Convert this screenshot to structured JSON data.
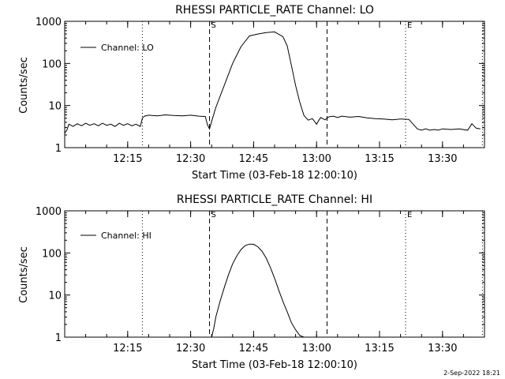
{
  "chart_data": [
    {
      "type": "line",
      "title": "RHESSI PARTICLE_RATE Channel: LO",
      "xlabel": "Start Time (03-Feb-18 12:00:10)",
      "ylabel": "Counts/sec",
      "yscale": "log",
      "ylim": [
        1,
        1000
      ],
      "xlim_minutes": [
        0,
        100
      ],
      "x_ticks": [
        {
          "label": "12:15",
          "minutes": 15
        },
        {
          "label": "12:30",
          "minutes": 30
        },
        {
          "label": "12:45",
          "minutes": 45
        },
        {
          "label": "13:00",
          "minutes": 60
        },
        {
          "label": "13:15",
          "minutes": 75
        },
        {
          "label": "13:30",
          "minutes": 90
        }
      ],
      "y_ticks": [
        {
          "label": "1",
          "value": 1
        },
        {
          "label": "10",
          "value": 10
        },
        {
          "label": "100",
          "value": 100
        },
        {
          "label": "1000",
          "value": 1000
        }
      ],
      "legend": {
        "label": "Channel: LO",
        "position": "top-left"
      },
      "markers": [
        {
          "label": "S",
          "minutes": 34.5,
          "style": "dashed"
        },
        {
          "label": "",
          "minutes": 62.5,
          "style": "dashed"
        },
        {
          "label": "",
          "minutes": 18.5,
          "style": "dotted"
        },
        {
          "label": "E",
          "minutes": 81.2,
          "style": "dotted"
        },
        {
          "label": "",
          "minutes": 99.5,
          "style": "dotted"
        }
      ],
      "series": [
        {
          "name": "Channel: LO",
          "x": [
            0,
            0.5,
            1,
            2,
            3,
            4,
            5,
            6,
            7,
            8,
            9,
            10,
            11,
            12,
            13,
            14,
            15,
            16,
            17,
            18,
            18.5,
            19,
            20,
            22,
            24,
            26,
            28,
            30,
            32,
            33.5,
            34,
            34.5,
            35,
            36,
            38,
            40,
            42,
            44,
            46,
            48,
            50,
            52,
            53,
            54,
            55,
            56,
            57,
            58,
            59,
            60,
            60.5,
            61,
            62,
            63,
            64,
            65,
            66,
            68,
            70,
            72,
            74,
            76,
            78,
            80,
            82,
            84,
            85,
            86,
            87,
            88,
            89,
            90,
            92,
            94,
            96,
            97,
            98,
            99
          ],
          "y": [
            2.2,
            2.6,
            3.6,
            3.2,
            3.7,
            3.3,
            3.8,
            3.4,
            3.7,
            3.3,
            3.8,
            3.4,
            3.6,
            3.2,
            3.8,
            3.4,
            3.7,
            3.3,
            3.6,
            3.2,
            5.0,
            5.6,
            5.9,
            5.7,
            6.0,
            5.8,
            5.7,
            5.9,
            5.6,
            5.5,
            3.5,
            2.8,
            4.2,
            9.0,
            30,
            100,
            250,
            450,
            500,
            540,
            560,
            430,
            260,
            90,
            30,
            12,
            5.8,
            4.5,
            4.9,
            3.6,
            4.4,
            5.2,
            4.6,
            5.4,
            5.6,
            5.2,
            5.6,
            5.3,
            5.5,
            5.1,
            4.9,
            4.8,
            4.6,
            4.8,
            4.7,
            2.8,
            2.6,
            2.8,
            2.6,
            2.7,
            2.6,
            2.8,
            2.7,
            2.8,
            2.6,
            3.7,
            2.9,
            2.8
          ]
        }
      ]
    },
    {
      "type": "line",
      "title": "RHESSI PARTICLE_RATE Channel: HI",
      "xlabel": "Start Time (03-Feb-18 12:00:10)",
      "ylabel": "Counts/sec",
      "yscale": "log",
      "ylim": [
        1,
        1000
      ],
      "xlim_minutes": [
        0,
        100
      ],
      "x_ticks": [
        {
          "label": "12:15",
          "minutes": 15
        },
        {
          "label": "12:30",
          "minutes": 30
        },
        {
          "label": "12:45",
          "minutes": 45
        },
        {
          "label": "13:00",
          "minutes": 60
        },
        {
          "label": "13:15",
          "minutes": 75
        },
        {
          "label": "13:30",
          "minutes": 90
        }
      ],
      "y_ticks": [
        {
          "label": "1",
          "value": 1
        },
        {
          "label": "10",
          "value": 10
        },
        {
          "label": "100",
          "value": 100
        },
        {
          "label": "1000",
          "value": 1000
        }
      ],
      "legend": {
        "label": "Channel: HI",
        "position": "top-left"
      },
      "markers": [
        {
          "label": "S",
          "minutes": 34.5,
          "style": "dashed"
        },
        {
          "label": "",
          "minutes": 62.5,
          "style": "dashed"
        },
        {
          "label": "",
          "minutes": 18.5,
          "style": "dotted"
        },
        {
          "label": "E",
          "minutes": 81.2,
          "style": "dotted"
        },
        {
          "label": "",
          "minutes": 99.5,
          "style": "dotted"
        }
      ],
      "series": [
        {
          "name": "Channel: HI",
          "x": [
            35,
            35.5,
            36,
            37,
            38,
            39,
            40,
            41,
            42,
            43,
            44,
            45,
            46,
            47,
            48,
            49,
            50,
            51,
            52,
            53,
            54,
            55,
            56,
            57
          ],
          "y": [
            1,
            1.6,
            3,
            7,
            15,
            30,
            55,
            85,
            120,
            150,
            162,
            160,
            140,
            110,
            75,
            45,
            25,
            13,
            7,
            4,
            2.2,
            1.5,
            1.1,
            1
          ]
        }
      ]
    }
  ],
  "footer": {
    "timestamp": "2-Sep-2022 18:21"
  }
}
